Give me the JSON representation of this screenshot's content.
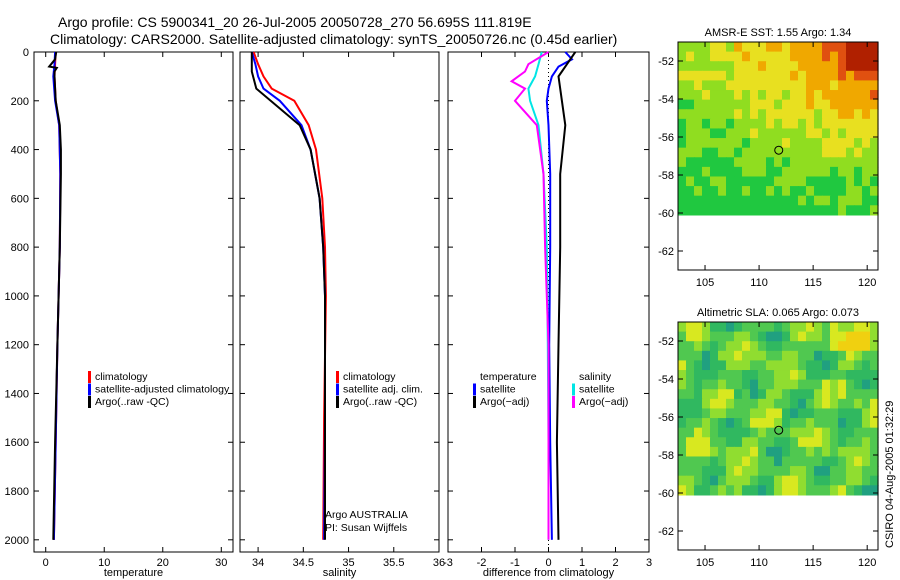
{
  "header": {
    "title_line1": "Argo profile: CS 5900341_20 26-Jul-2005 20050728_270 56.695S 111.819E",
    "title_line2": "Climatology: CARS2000. Satellite-adjusted climatology: synTS_20050726.nc (0.45d earlier)"
  },
  "footer": {
    "signature": "CSIRO 04-Aug-2005 01:32:29"
  },
  "colors": {
    "climatology": "#ff0000",
    "satellite": "#0000ff",
    "argo": "#000000",
    "satellite_salinity": "#00e5e5",
    "argo_salinity": "#ff00ff"
  },
  "chart_data": [
    {
      "type": "line",
      "id": "temperature",
      "xlabel": "temperature",
      "xlim": [
        -2,
        32
      ],
      "ylim": [
        2050,
        0
      ],
      "xticks": [
        0,
        10,
        20,
        30
      ],
      "yticks": [
        0,
        200,
        400,
        600,
        800,
        1000,
        1200,
        1400,
        1600,
        1800,
        2000
      ],
      "legend": [
        "climatology",
        "satellite-adjusted climatology",
        "Argo(..raw -QC)"
      ],
      "series": [
        {
          "name": "climatology",
          "color": "red",
          "depth": [
            0,
            50,
            100,
            200,
            300,
            500,
            800,
            1200,
            1600,
            2000
          ],
          "values": [
            1.7,
            1.6,
            1.5,
            1.7,
            2.3,
            2.5,
            2.4,
            2.0,
            1.7,
            1.4
          ]
        },
        {
          "name": "satellite-adjusted climatology",
          "color": "blue",
          "depth": [
            0,
            50,
            100,
            200,
            300,
            500,
            800,
            1200,
            1600,
            2000
          ],
          "values": [
            1.6,
            1.5,
            1.3,
            1.6,
            2.3,
            2.5,
            2.4,
            2.0,
            1.7,
            1.4
          ]
        },
        {
          "name": "Argo(..raw -QC)",
          "color": "black",
          "depth": [
            0,
            30,
            60,
            65,
            80,
            100,
            200,
            300,
            400,
            500,
            800,
            1200,
            1600,
            2000
          ],
          "values": [
            1.8,
            1.6,
            0.6,
            1.9,
            1.5,
            1.5,
            1.7,
            2.4,
            2.6,
            2.6,
            2.4,
            2.0,
            1.6,
            1.3
          ]
        }
      ]
    },
    {
      "type": "line",
      "id": "salinity",
      "xlabel": "salinity",
      "xlim": [
        33.8,
        36.0
      ],
      "ylim": [
        2050,
        0
      ],
      "xticks": [
        34,
        34.5,
        35,
        35.5,
        36
      ],
      "xtick_labels": [
        "34",
        "34.5",
        "35",
        "35.5",
        "36"
      ],
      "legend": [
        "climatology",
        "satellite adj. clim.",
        "Argo(..raw -QC)"
      ],
      "annotation": [
        "Argo AUSTRALIA",
        "PI: Susan Wijffels"
      ],
      "series": [
        {
          "name": "climatology",
          "color": "red",
          "depth": [
            0,
            50,
            100,
            150,
            200,
            300,
            400,
            600,
            800,
            1000,
            1500,
            2000
          ],
          "values": [
            33.95,
            34.0,
            34.06,
            34.15,
            34.4,
            34.56,
            34.64,
            34.71,
            34.74,
            34.75,
            34.73,
            34.72
          ]
        },
        {
          "name": "satellite adj. clim.",
          "color": "blue",
          "depth": [
            0,
            50,
            100,
            150,
            200,
            300,
            400,
            600,
            800,
            1000,
            1500,
            2000
          ],
          "values": [
            33.93,
            33.97,
            34.0,
            34.06,
            34.24,
            34.48,
            34.58,
            34.68,
            34.72,
            34.74,
            34.74,
            34.73
          ]
        },
        {
          "name": "Argo(..raw -QC)",
          "color": "black",
          "depth": [
            0,
            80,
            150,
            250,
            300,
            400,
            600,
            800,
            1000,
            1500,
            2000
          ],
          "values": [
            33.93,
            33.93,
            33.98,
            34.3,
            34.46,
            34.58,
            34.68,
            34.72,
            34.74,
            34.74,
            34.74
          ]
        }
      ]
    },
    {
      "type": "line",
      "id": "difference",
      "xlabel": "difference from climatology",
      "xlim": [
        -3,
        3
      ],
      "ylim": [
        2050,
        0
      ],
      "xticks": [
        -3,
        -2,
        -1,
        0,
        1,
        2,
        3
      ],
      "legend_left": [
        "temperature",
        "satellite",
        "Argo(−adj)"
      ],
      "legend_right": [
        "salinity",
        "satellite",
        "Argo(−adj)"
      ],
      "series": [
        {
          "name": "temperature satellite",
          "color": "blue",
          "depth": [
            0,
            30,
            60,
            100,
            150,
            200,
            300,
            500,
            800,
            1200,
            1600,
            2000
          ],
          "values": [
            0.5,
            0.7,
            0.3,
            0.1,
            0.0,
            -0.05,
            0.0,
            0.05,
            0.05,
            0.02,
            0.05,
            0.1
          ]
        },
        {
          "name": "temperature Argo(−adj)",
          "color": "black",
          "depth": [
            0,
            40,
            80,
            100,
            200,
            300,
            500,
            800,
            1200,
            1600,
            2000
          ],
          "values": [
            0.8,
            0.6,
            0.4,
            0.3,
            0.4,
            0.5,
            0.35,
            0.35,
            0.3,
            0.25,
            0.3
          ]
        },
        {
          "name": "salinity satellite",
          "color": "#00e5e5",
          "depth": [
            0,
            50,
            100,
            150,
            200,
            300,
            500,
            800,
            1200,
            1600,
            2000
          ],
          "values": [
            -0.2,
            -0.3,
            -0.4,
            -0.6,
            -0.55,
            -0.3,
            -0.15,
            -0.05,
            -0.02,
            0.0,
            0.0
          ]
        },
        {
          "name": "salinity Argo(−adj)",
          "color": "#ff00ff",
          "depth": [
            0,
            50,
            80,
            120,
            150,
            200,
            300,
            500,
            800,
            1000,
            1200,
            1600,
            2000
          ],
          "values": [
            0.0,
            -0.6,
            -0.7,
            -1.1,
            -0.7,
            -1.0,
            -0.35,
            -0.15,
            -0.1,
            -0.05,
            0.0,
            0.0,
            0.0
          ]
        }
      ]
    },
    {
      "type": "heatmap",
      "id": "sst_map",
      "title": "AMSR-E SST: 1.55 Argo: 1.34",
      "xlim": [
        102.5,
        121
      ],
      "ylim": [
        -63,
        -51
      ],
      "xticks": [
        105,
        110,
        115,
        120
      ],
      "yticks": [
        -52,
        -54,
        -56,
        -58,
        -60,
        -62
      ],
      "data_lat_min": -60.1,
      "argo_point": [
        111.819,
        -56.695
      ],
      "palette": [
        "#00a060",
        "#20c840",
        "#90dd20",
        "#e8e020",
        "#f0a800",
        "#e05010",
        "#b02000"
      ]
    },
    {
      "type": "heatmap",
      "id": "sla_map",
      "title": "Altimetric SLA: 0.065 Argo: 0.073",
      "xlim": [
        102.5,
        121
      ],
      "ylim": [
        -63,
        -51
      ],
      "xticks": [
        105,
        110,
        115,
        120
      ],
      "yticks": [
        -52,
        -54,
        -56,
        -58,
        -60,
        -62
      ],
      "data_lat_min": -60.1,
      "argo_point": [
        111.819,
        -56.695
      ],
      "palette": [
        "#20a080",
        "#30b860",
        "#50c850",
        "#90dd30",
        "#d8e820",
        "#f0d010"
      ]
    }
  ]
}
